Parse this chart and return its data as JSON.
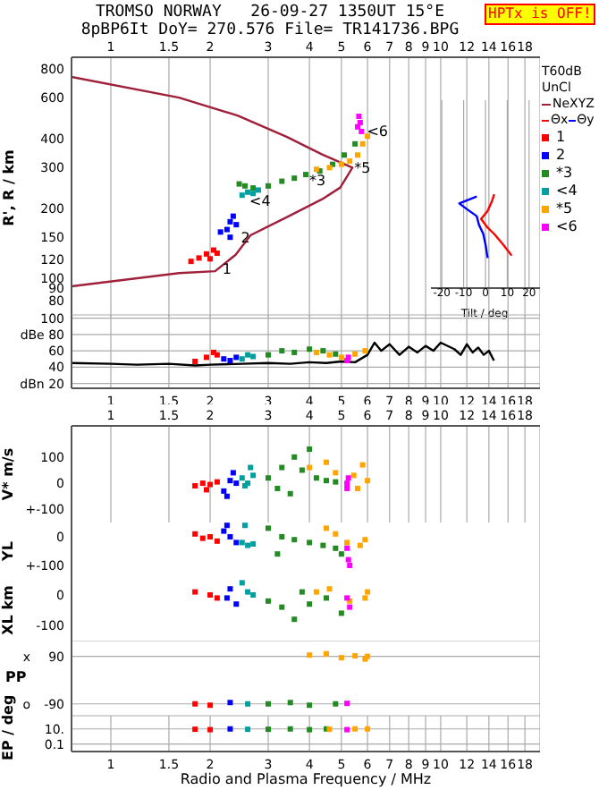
{
  "chart_data": [
    {
      "type": "scatter",
      "title": "TROMSO NORWAY   26-09-27 1350UT 15°E",
      "subtitle": "8pBP6It DoY= 270.576 File= TR141736.BPG",
      "ylabel": "R', R / km",
      "x2label": "Tilt / deg",
      "log": "xy",
      "grid": "x",
      "legend": "right",
      "marker": "square",
      "xlim": [
        0.76,
        20
      ],
      "xticks": [
        1,
        1.5,
        2,
        3,
        4,
        5,
        6,
        7,
        8,
        9,
        10,
        12,
        14,
        16,
        18
      ],
      "ylim": [
        68,
        900
      ],
      "yticks": [
        80,
        90,
        100,
        120,
        150,
        200,
        300,
        400,
        600,
        800
      ],
      "x2lim": [
        -25,
        25
      ],
      "x2ticks": [
        -20,
        -10,
        0,
        10,
        20
      ],
      "annotations": [
        "HPTx is OFF!",
        "T60dB",
        "UnCl",
        {
          "text": "1",
          "x": 2.15,
          "y": 110
        },
        {
          "text": "2",
          "x": 2.45,
          "y": 150
        },
        {
          "text": "*3",
          "x": 3.95,
          "y": 265
        },
        {
          "text": "<4",
          "x": 2.6,
          "y": 216
        },
        {
          "text": "*5",
          "x": 5.4,
          "y": 300
        },
        {
          "text": "<6",
          "x": 5.9,
          "y": 435
        }
      ],
      "series": [
        {
          "name": "NeXYZ",
          "type": "line",
          "color": "#a0203a",
          "marker": "none",
          "x": [
            0.76,
            1.61,
            2.07,
            2.39,
            2.65,
            3.41,
            4.37,
            4.96,
            5.4,
            4.37,
            3.41,
            2.43,
            1.61,
            0.76
          ],
          "values": [
            92,
            105,
            107,
            126,
            153,
            183,
            219,
            246,
            300,
            342,
            408,
            503,
            602,
            740
          ]
        },
        {
          "name": "Θx",
          "type": "line",
          "axis": "x2",
          "color": "#ff0000",
          "marker": "none",
          "x": [
            4,
            3,
            1,
            -2,
            1,
            4,
            8,
            12
          ],
          "values": [
            230,
            215,
            195,
            180,
            165,
            155,
            140,
            125
          ]
        },
        {
          "name": "Θy",
          "type": "line",
          "axis": "x2",
          "color": "#0000ff",
          "marker": "none",
          "x": [
            -4,
            -12,
            -9,
            -4,
            -3,
            -1,
            0,
            1
          ],
          "values": [
            225,
            210,
            200,
            185,
            170,
            155,
            140,
            122
          ]
        },
        {
          "name": "1",
          "color": "#ff0000",
          "x": [
            1.75,
            1.85,
            1.95,
            2.05,
            2.1,
            2.0
          ],
          "values": [
            118,
            122,
            127,
            132,
            128,
            121
          ]
        },
        {
          "name": "2",
          "color": "#0000ff",
          "x": [
            2.15,
            2.25,
            2.3,
            2.35,
            2.4,
            2.3
          ],
          "values": [
            158,
            162,
            175,
            185,
            170,
            150
          ]
        },
        {
          "name": "*3",
          "color": "#228b22",
          "x": [
            2.45,
            2.55,
            2.7,
            3.0,
            3.3,
            3.6,
            3.9,
            4.3,
            4.7,
            5.1,
            5.5
          ],
          "values": [
            255,
            250,
            245,
            250,
            262,
            270,
            280,
            290,
            310,
            340,
            380
          ]
        },
        {
          "name": "<4",
          "color": "#00a0a0",
          "x": [
            2.5,
            2.6,
            2.7,
            2.8
          ],
          "values": [
            228,
            235,
            232,
            240
          ]
        },
        {
          "name": "*5",
          "color": "#ffa500",
          "x": [
            4.2,
            4.6,
            5.0,
            5.3,
            5.6,
            5.8,
            6.0
          ],
          "values": [
            295,
            300,
            310,
            320,
            340,
            380,
            410
          ]
        },
        {
          "name": "<6",
          "color": "#ff00ff",
          "x": [
            5.6,
            5.7,
            5.65,
            5.75
          ],
          "values": [
            450,
            470,
            500,
            430
          ]
        }
      ]
    },
    {
      "type": "scatter",
      "log": "x",
      "grid": true,
      "marker": "square",
      "xlim": [
        0.76,
        20
      ],
      "xticks": [
        1,
        1.5,
        2,
        3,
        4,
        5,
        6,
        7,
        8,
        9,
        10,
        12,
        14,
        16,
        18
      ],
      "ylim": [
        14,
        104
      ],
      "yticks": [
        100,
        {
          "value": 80,
          "label": "dBe 80"
        },
        60,
        40,
        {
          "value": 20,
          "label": "dBn 20"
        }
      ],
      "series": [
        {
          "type": "line",
          "color": "#000000",
          "marker": "none",
          "x": [
            0.76,
            1,
            1.2,
            1.5,
            1.8,
            2,
            2.5,
            3,
            3.5,
            4,
            4.5,
            5,
            5.5,
            6,
            6.3,
            6.6,
            7,
            7.5,
            8,
            8.5,
            9,
            9.5,
            10,
            11,
            11.5,
            12,
            12.5,
            13,
            13.5,
            14,
            14.5
          ],
          "values": [
            45,
            44,
            43,
            44,
            42,
            43,
            44,
            45,
            44,
            46,
            45,
            47,
            46,
            55,
            70,
            60,
            68,
            55,
            65,
            58,
            66,
            60,
            70,
            62,
            55,
            68,
            58,
            64,
            55,
            60,
            48
          ]
        },
        {
          "color": "#ff0000",
          "x": [
            1.8,
            1.95,
            2.05,
            2.1
          ],
          "values": [
            47,
            52,
            58,
            55
          ]
        },
        {
          "color": "#0000ff",
          "x": [
            2.2,
            2.3,
            2.4
          ],
          "values": [
            50,
            48,
            52
          ]
        },
        {
          "color": "#00a0a0",
          "x": [
            2.5,
            2.6,
            2.7
          ],
          "values": [
            50,
            55,
            53
          ]
        },
        {
          "color": "#228b22",
          "x": [
            3,
            3.3,
            3.6,
            4,
            4.4,
            4.8
          ],
          "values": [
            55,
            60,
            58,
            62,
            60,
            56
          ]
        },
        {
          "color": "#ffa500",
          "x": [
            4.2,
            4.6,
            5.0,
            5.5,
            5.9
          ],
          "values": [
            58,
            55,
            52,
            56,
            60
          ]
        },
        {
          "color": "#ff00ff",
          "x": [
            5.2,
            5.25
          ],
          "values": [
            48,
            52
          ]
        }
      ]
    },
    {
      "type": "scatter",
      "ylabel": "V* m/s",
      "log": "x",
      "grid": "x",
      "marker": "square",
      "xlim": [
        0.76,
        20
      ],
      "xticks": [
        1,
        1.5,
        2,
        3,
        4,
        5,
        6,
        7,
        8,
        9,
        10,
        12,
        14,
        16,
        18
      ],
      "ylim": [
        -150,
        219
      ],
      "yticks": [
        100,
        0,
        {
          "value": -100,
          "label": "+-100"
        }
      ],
      "series": [
        {
          "color": "#ff0000",
          "x": [
            1.8,
            1.9,
            2.0,
            2.1,
            1.95
          ],
          "values": [
            -10,
            0,
            -5,
            5,
            -25
          ]
        },
        {
          "color": "#0000ff",
          "x": [
            2.2,
            2.3,
            2.35,
            2.25,
            2.4
          ],
          "values": [
            -30,
            10,
            40,
            -50,
            0
          ]
        },
        {
          "color": "#00a0a0",
          "x": [
            2.5,
            2.6,
            2.7,
            2.55,
            2.65
          ],
          "values": [
            20,
            0,
            30,
            -10,
            60
          ]
        },
        {
          "color": "#228b22",
          "x": [
            3,
            3.3,
            3.6,
            3.8,
            4,
            4.2,
            3.2,
            4.5,
            3.5,
            4.8
          ],
          "values": [
            20,
            60,
            100,
            50,
            130,
            20,
            -20,
            10,
            -40,
            5
          ]
        },
        {
          "color": "#ffa500",
          "x": [
            4,
            4.5,
            4.8,
            5.45,
            5.8,
            6,
            5.6
          ],
          "values": [
            60,
            80,
            40,
            30,
            70,
            10,
            -20
          ]
        },
        {
          "color": "#ff00ff",
          "x": [
            5.2,
            5.25,
            5.2
          ],
          "values": [
            0,
            20,
            -20
          ]
        }
      ]
    },
    {
      "type": "scatter",
      "ylabel": "YL",
      "log": "x",
      "grid": "x",
      "marker": "square",
      "tick_labels": "y",
      "xlim": [
        0.76,
        20
      ],
      "ylim": [
        -150,
        50
      ],
      "yticks": [
        0,
        {
          "value": -100,
          "label": "+-100"
        }
      ],
      "series": [
        {
          "color": "#ff0000",
          "x": [
            1.8,
            1.9,
            2.0,
            2.1
          ],
          "values": [
            10,
            -5,
            0,
            -15
          ]
        },
        {
          "color": "#0000ff",
          "x": [
            2.2,
            2.3,
            2.4,
            2.25
          ],
          "values": [
            20,
            0,
            -20,
            40
          ]
        },
        {
          "color": "#00a0a0",
          "x": [
            2.5,
            2.6,
            2.7,
            2.55
          ],
          "values": [
            -20,
            -30,
            -25,
            40
          ]
        },
        {
          "color": "#228b22",
          "x": [
            3,
            3.3,
            3.6,
            4,
            4.4,
            4.8,
            5.0,
            3.2
          ],
          "values": [
            30,
            0,
            -10,
            -20,
            -30,
            -40,
            -60,
            -60
          ]
        },
        {
          "color": "#ffa500",
          "x": [
            4.5,
            4.8,
            5.2,
            5.7,
            5.9
          ],
          "values": [
            30,
            10,
            -20,
            -30,
            -10
          ]
        },
        {
          "color": "#ff00ff",
          "x": [
            5.2,
            5.25,
            5.3
          ],
          "values": [
            -40,
            -80,
            -100
          ]
        }
      ]
    },
    {
      "type": "scatter",
      "ylabel": "XL km",
      "log": "x",
      "grid": "x",
      "marker": "square",
      "tick_labels": "y",
      "xlim": [
        0.76,
        20
      ],
      "ylim": [
        -150,
        50
      ],
      "yticks": [
        0,
        -100
      ],
      "series": [
        {
          "color": "#ff0000",
          "x": [
            1.8,
            2.0,
            2.1
          ],
          "values": [
            10,
            0,
            -10
          ]
        },
        {
          "color": "#0000ff",
          "x": [
            2.25,
            2.4,
            2.3
          ],
          "values": [
            -10,
            -30,
            20
          ]
        },
        {
          "color": "#00a0a0",
          "x": [
            2.5,
            2.6,
            2.7
          ],
          "values": [
            40,
            10,
            0
          ]
        },
        {
          "color": "#228b22",
          "x": [
            3,
            3.3,
            3.6,
            4,
            4.5,
            5,
            3.8
          ],
          "values": [
            -20,
            -40,
            -80,
            -30,
            -10,
            -60,
            10
          ]
        },
        {
          "color": "#ffa500",
          "x": [
            4.2,
            4.6,
            5.3,
            5.9,
            6
          ],
          "values": [
            10,
            20,
            -20,
            -10,
            10
          ]
        },
        {
          "color": "#ff00ff",
          "x": [
            5.2,
            5.3
          ],
          "values": [
            -10,
            -40
          ]
        }
      ]
    },
    {
      "type": "scatter",
      "ylabel": "PP",
      "log": "x",
      "grid": true,
      "marker": "square",
      "tick_labels": "y",
      "xlim": [
        0.76,
        20
      ],
      "ylim": [
        -135,
        150
      ],
      "yticks": [
        90,
        -90
      ],
      "annotations": [
        "x",
        "o"
      ],
      "series": [
        {
          "color": "#ff0000",
          "x": [
            1.8,
            2.0
          ],
          "values": [
            -90,
            -95
          ]
        },
        {
          "color": "#0000ff",
          "x": [
            2.3
          ],
          "values": [
            -85
          ]
        },
        {
          "color": "#00a0a0",
          "x": [
            2.6
          ],
          "values": [
            -90
          ]
        },
        {
          "color": "#228b22",
          "x": [
            3,
            3.5,
            4,
            4.8
          ],
          "values": [
            -90,
            -85,
            -95,
            -90
          ]
        },
        {
          "color": "#ffa500",
          "x": [
            4,
            4.5,
            5,
            5.5,
            5.9,
            6
          ],
          "values": [
            95,
            100,
            85,
            92,
            80,
            90
          ]
        },
        {
          "color": "#ff00ff",
          "x": [
            5.2
          ],
          "values": [
            -88
          ]
        }
      ]
    },
    {
      "type": "scatter",
      "ylabel": "EP / deg",
      "xlabel": "Radio and Plasma Frequency / MHz",
      "log": "xy",
      "grid": true,
      "marker": "square",
      "xlim": [
        0.76,
        20
      ],
      "xticks": [
        1,
        1.5,
        2,
        3,
        4,
        5,
        6,
        7,
        8,
        9,
        10,
        12,
        14,
        16,
        18
      ],
      "ylim": [
        0.01,
        560
      ],
      "yticks": [
        {
          "value": 10,
          "label": "10."
        },
        0.1
      ],
      "series": [
        {
          "color": "#ff0000",
          "x": [
            1.8,
            2.0
          ],
          "values": [
            9,
            8
          ]
        },
        {
          "color": "#0000ff",
          "x": [
            2.3
          ],
          "values": [
            10
          ]
        },
        {
          "color": "#00a0a0",
          "x": [
            2.6
          ],
          "values": [
            9
          ]
        },
        {
          "color": "#228b22",
          "x": [
            3,
            3.5,
            4,
            4.5
          ],
          "values": [
            9,
            10,
            8,
            10
          ]
        },
        {
          "color": "#ffa500",
          "x": [
            4.6,
            5.5,
            6
          ],
          "values": [
            9,
            10,
            10
          ]
        },
        {
          "color": "#ff00ff",
          "x": [
            5.2
          ],
          "values": [
            8
          ]
        }
      ]
    }
  ]
}
